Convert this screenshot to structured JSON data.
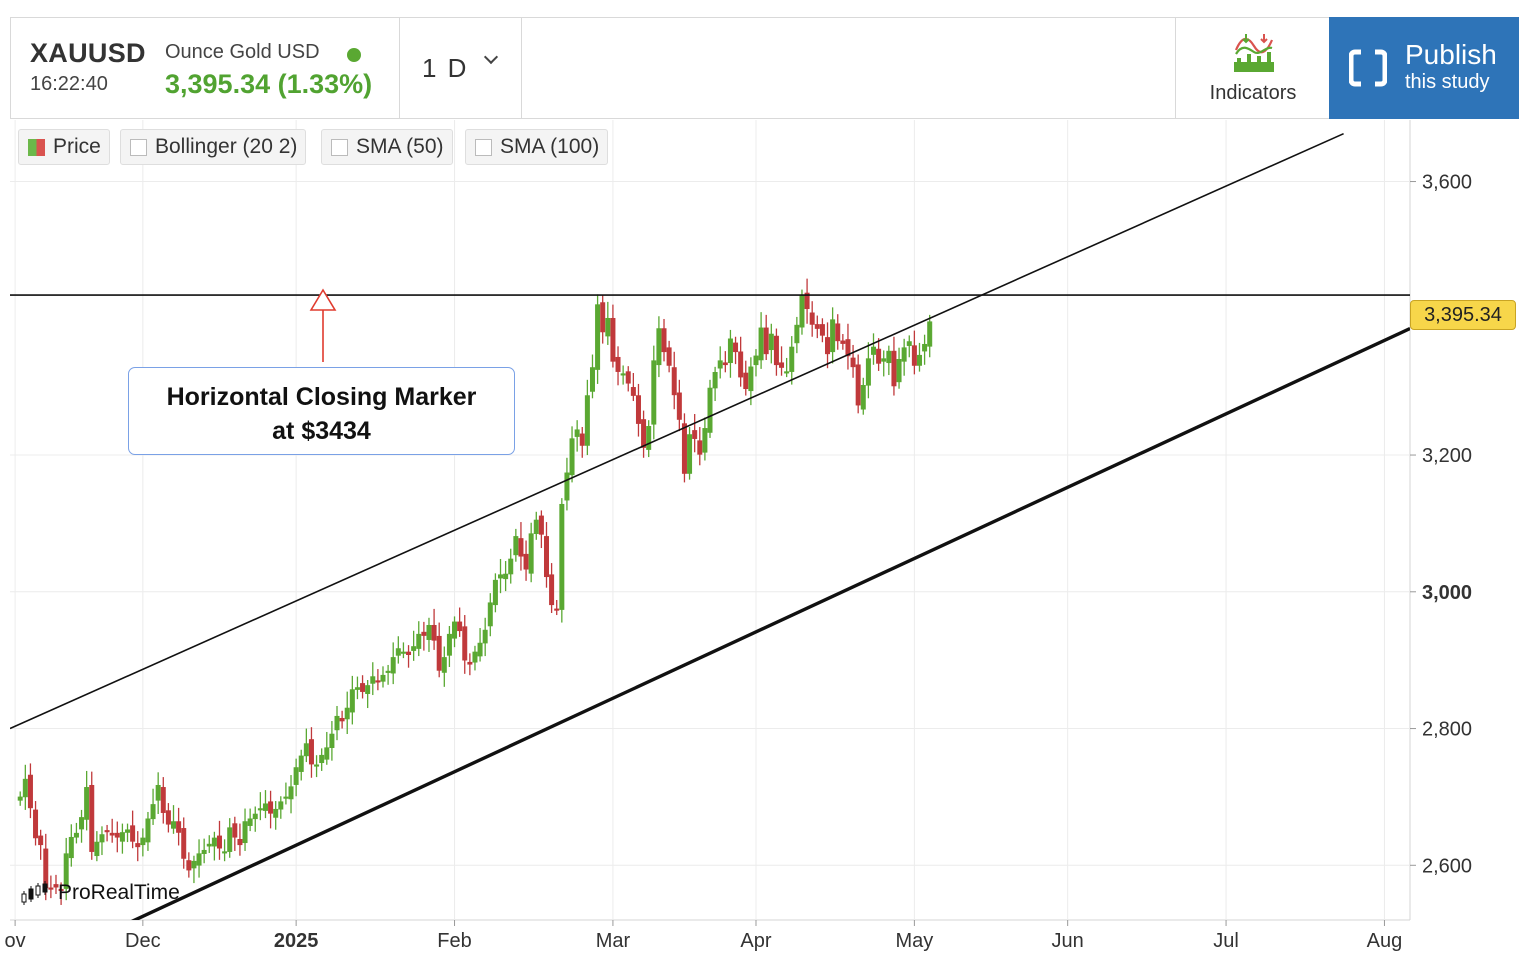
{
  "header": {
    "ticker": "XAUUSD",
    "description": "Ounce Gold USD",
    "time": "16:22:40",
    "price_change": "3,395.34 (1.33%)",
    "period": "1 D",
    "indicators_label": "Indicators",
    "publish_line1": "Publish",
    "publish_line2": "this study",
    "status_color": "#5aa832"
  },
  "legend": {
    "price": "Price",
    "bollinger": "Bollinger (20 2)",
    "sma50": "SMA (50)",
    "sma100": "SMA (100)"
  },
  "annotation": {
    "line1": "Horizontal Closing Marker",
    "line2": "at $3434"
  },
  "watermark": "ProRealTime",
  "last_price_label": "3,395.34",
  "chart_data": {
    "type": "candlestick",
    "title": "",
    "y_ticks": [
      "3,600",
      "3,200",
      "3,000",
      "2,800",
      "2,600"
    ],
    "y_tick_values": [
      3600,
      3200,
      3000,
      2800,
      2600
    ],
    "x_ticks": [
      "ov",
      "Dec",
      "2025",
      "Feb",
      "Mar",
      "Apr",
      "May",
      "Jun",
      "Jul",
      "Aug"
    ],
    "x_tick_days": [
      0,
      25,
      55,
      86,
      117,
      145,
      176,
      206,
      237,
      268
    ],
    "ylim": [
      2520,
      3690
    ],
    "xlim": [
      -1,
      273
    ],
    "grid": true,
    "colors": {
      "up": "#5aa832",
      "down": "#c0393b"
    },
    "horizontal_line": 3434,
    "upper_channel": [
      [
        -1,
        2800
      ],
      [
        260,
        3670
      ]
    ],
    "lower_channel": [
      [
        22,
        2515
      ],
      [
        273,
        3385
      ]
    ],
    "last_price": 3395.34,
    "close_series": [
      [
        1,
        2700
      ],
      [
        2,
        2726
      ],
      [
        3,
        2684
      ],
      [
        4,
        2640
      ],
      [
        5,
        2630
      ],
      [
        6,
        2567
      ],
      [
        7,
        2566
      ],
      [
        8,
        2568
      ],
      [
        9,
        2563
      ],
      [
        10,
        2617
      ],
      [
        11,
        2641
      ],
      [
        12,
        2647
      ],
      [
        13,
        2670
      ],
      [
        14,
        2714
      ],
      [
        15,
        2620
      ],
      [
        16,
        2634
      ],
      [
        17,
        2645
      ],
      [
        18,
        2650
      ],
      [
        19,
        2644
      ],
      [
        20,
        2641
      ],
      [
        21,
        2648
      ],
      [
        22,
        2652
      ],
      [
        23,
        2635
      ],
      [
        24,
        2627
      ],
      [
        25,
        2640
      ],
      [
        26,
        2668
      ],
      [
        27,
        2689
      ],
      [
        28,
        2717
      ],
      [
        29,
        2677
      ],
      [
        30,
        2660
      ],
      [
        31,
        2664
      ],
      [
        32,
        2648
      ],
      [
        33,
        2610
      ],
      [
        34,
        2593
      ],
      [
        35,
        2606
      ],
      [
        36,
        2617
      ],
      [
        37,
        2622
      ],
      [
        38,
        2631
      ],
      [
        39,
        2640
      ],
      [
        40,
        2625
      ],
      [
        41,
        2620
      ],
      [
        42,
        2655
      ],
      [
        43,
        2641
      ],
      [
        44,
        2630
      ],
      [
        45,
        2664
      ],
      [
        46,
        2668
      ],
      [
        47,
        2675
      ],
      [
        48,
        2683
      ],
      [
        49,
        2690
      ],
      [
        50,
        2676
      ],
      [
        51,
        2682
      ],
      [
        52,
        2693
      ],
      [
        53,
        2700
      ],
      [
        54,
        2715
      ],
      [
        55,
        2743
      ],
      [
        56,
        2760
      ],
      [
        57,
        2778
      ],
      [
        58,
        2748
      ],
      [
        59,
        2747
      ],
      [
        60,
        2761
      ],
      [
        61,
        2772
      ],
      [
        62,
        2792
      ],
      [
        63,
        2818
      ],
      [
        64,
        2811
      ],
      [
        65,
        2830
      ],
      [
        66,
        2857
      ],
      [
        67,
        2860
      ],
      [
        68,
        2854
      ],
      [
        69,
        2863
      ],
      [
        70,
        2876
      ],
      [
        71,
        2869
      ],
      [
        72,
        2878
      ],
      [
        73,
        2884
      ],
      [
        74,
        2904
      ],
      [
        75,
        2917
      ],
      [
        76,
        2912
      ],
      [
        77,
        2908
      ],
      [
        78,
        2920
      ],
      [
        79,
        2938
      ],
      [
        80,
        2936
      ],
      [
        81,
        2951
      ],
      [
        82,
        2929
      ],
      [
        83,
        2885
      ],
      [
        84,
        2904
      ],
      [
        85,
        2938
      ],
      [
        86,
        2956
      ],
      [
        87,
        2943
      ],
      [
        88,
        2900
      ],
      [
        89,
        2894
      ],
      [
        90,
        2912
      ],
      [
        91,
        2925
      ],
      [
        92,
        2944
      ],
      [
        93,
        2984
      ],
      [
        94,
        3017
      ],
      [
        95,
        3025
      ],
      [
        96,
        3026
      ],
      [
        97,
        3048
      ],
      [
        98,
        3081
      ],
      [
        99,
        3052
      ],
      [
        100,
        3033
      ],
      [
        101,
        3085
      ],
      [
        102,
        3105
      ],
      [
        103,
        3084
      ],
      [
        104,
        3022
      ],
      [
        105,
        2981
      ],
      [
        106,
        2974
      ],
      [
        107,
        3128
      ],
      [
        108,
        3174
      ],
      [
        109,
        3224
      ],
      [
        110,
        3237
      ],
      [
        111,
        3214
      ],
      [
        112,
        3287
      ],
      [
        113,
        3328
      ],
      [
        114,
        3420
      ],
      [
        115,
        3380
      ],
      [
        116,
        3400
      ],
      [
        117,
        3337
      ],
      [
        118,
        3322
      ],
      [
        119,
        3319
      ],
      [
        120,
        3305
      ],
      [
        121,
        3287
      ],
      [
        122,
        3246
      ],
      [
        123,
        3211
      ],
      [
        124,
        3242
      ],
      [
        125,
        3338
      ],
      [
        126,
        3385
      ],
      [
        127,
        3351
      ],
      [
        128,
        3331
      ],
      [
        129,
        3288
      ],
      [
        130,
        3252
      ],
      [
        131,
        3173
      ],
      [
        132,
        3230
      ],
      [
        133,
        3224
      ],
      [
        134,
        3201
      ],
      [
        135,
        3239
      ],
      [
        136,
        3298
      ],
      [
        137,
        3321
      ],
      [
        138,
        3338
      ],
      [
        139,
        3332
      ],
      [
        140,
        3370
      ],
      [
        141,
        3351
      ],
      [
        142,
        3314
      ],
      [
        143,
        3297
      ],
      [
        144,
        3329
      ],
      [
        145,
        3345
      ],
      [
        146,
        3386
      ],
      [
        147,
        3348
      ],
      [
        148,
        3377
      ],
      [
        149,
        3332
      ],
      [
        150,
        3328
      ],
      [
        151,
        3322
      ],
      [
        152,
        3358
      ],
      [
        153,
        3390
      ],
      [
        154,
        3434
      ],
      [
        155,
        3414
      ],
      [
        156,
        3391
      ],
      [
        157,
        3385
      ],
      [
        158,
        3375
      ],
      [
        159,
        3348
      ],
      [
        160,
        3398
      ],
      [
        161,
        3367
      ],
      [
        162,
        3363
      ],
      [
        163,
        3345
      ],
      [
        164,
        3329
      ],
      [
        165,
        3273
      ],
      [
        166,
        3302
      ],
      [
        167,
        3341
      ],
      [
        168,
        3358
      ],
      [
        169,
        3334
      ],
      [
        170,
        3341
      ],
      [
        171,
        3352
      ],
      [
        172,
        3301
      ],
      [
        173,
        3340
      ],
      [
        174,
        3357
      ],
      [
        175,
        3366
      ],
      [
        176,
        3331
      ],
      [
        177,
        3346
      ],
      [
        178,
        3362
      ],
      [
        179,
        3395
      ]
    ]
  }
}
